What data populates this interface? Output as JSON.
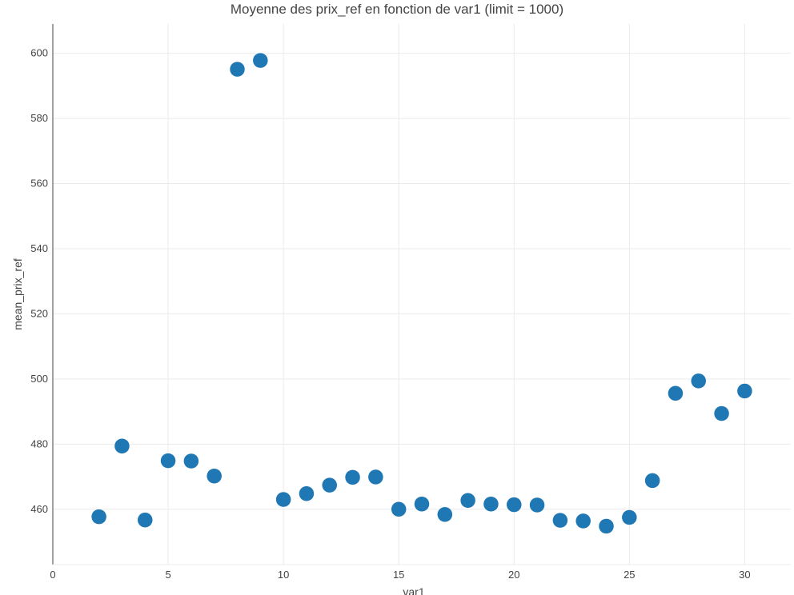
{
  "chart_data": {
    "type": "scatter",
    "title": "Moyenne des prix_ref en fonction de var1 (limit = 1000)",
    "xlabel": "var1",
    "ylabel": "mean_prix_ref",
    "xlim": [
      0,
      32
    ],
    "ylim": [
      443,
      609
    ],
    "x_ticks": [
      0,
      5,
      10,
      15,
      20,
      25,
      30
    ],
    "y_ticks": [
      460,
      480,
      500,
      520,
      540,
      560,
      580,
      600
    ],
    "grid": true,
    "marker_color": "#1f77b4",
    "series": [
      {
        "x": [
          2,
          3,
          4,
          5,
          6,
          7,
          8,
          9,
          10,
          11,
          12,
          13,
          14,
          15,
          16,
          17,
          18,
          19,
          20,
          21,
          22,
          23,
          24,
          25,
          26,
          27,
          28,
          29,
          30
        ],
        "y": [
          457.7,
          479.4,
          456.7,
          474.9,
          474.8,
          470.2,
          595.1,
          597.8,
          463.0,
          464.8,
          467.4,
          469.8,
          469.9,
          460.0,
          461.6,
          458.4,
          462.7,
          461.6,
          461.4,
          461.3,
          456.6,
          456.4,
          454.8,
          457.5,
          468.8,
          495.6,
          499.4,
          489.4,
          496.3
        ]
      }
    ]
  }
}
